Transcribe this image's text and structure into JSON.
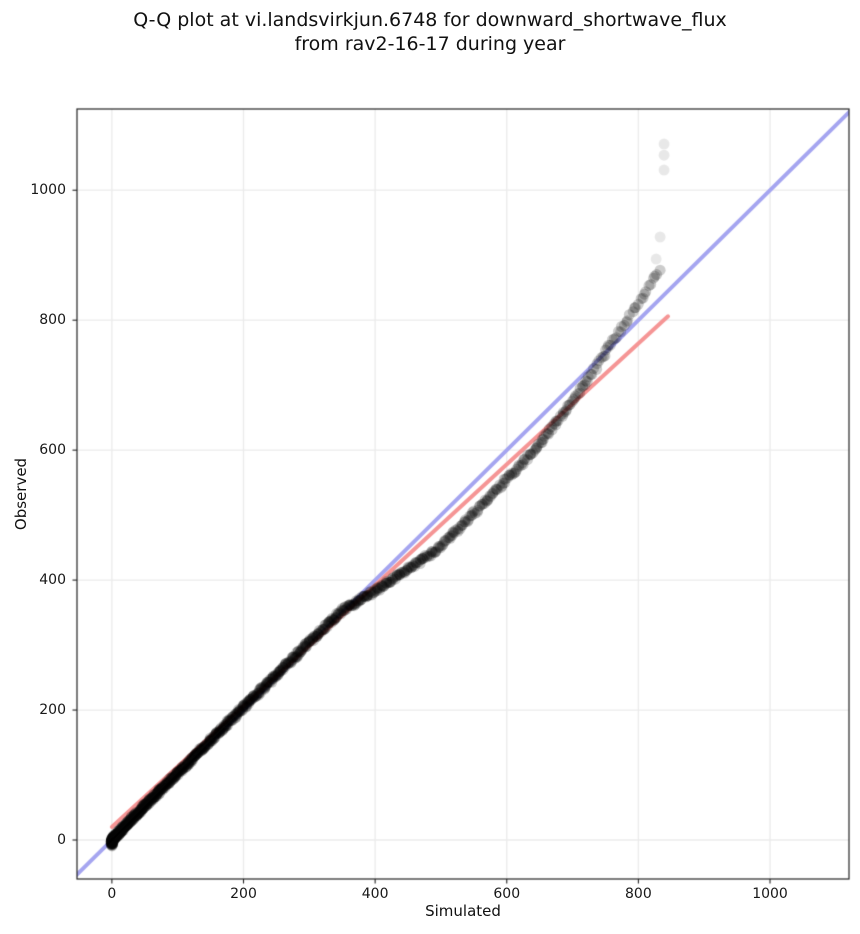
{
  "chart_data": {
    "type": "scatter",
    "title_lines": [
      "Q-Q plot at vi.landsvirkjun.6748 for downward_shortwave_flux",
      "from rav2-16-17 during year"
    ],
    "xlabel": "Simulated",
    "ylabel": "Observed",
    "xlim": [
      -53,
      1120
    ],
    "ylim": [
      -60,
      1125
    ],
    "xticks": [
      0,
      200,
      400,
      600,
      800,
      1000
    ],
    "yticks": [
      0,
      200,
      400,
      600,
      800,
      1000
    ],
    "grid": true,
    "grid_color": "#ebebeb",
    "spine_color": "#222222",
    "background_color": "#ffffff",
    "legend": "none",
    "identity_line": {
      "name": "1:1 reference line",
      "color": "#a5a5f0",
      "width": 4,
      "from": [
        -60,
        -60
      ],
      "to": [
        1125,
        1125
      ]
    },
    "fit_line": {
      "name": "linear fit line",
      "color": "#f59595",
      "width": 4,
      "from": [
        0,
        20
      ],
      "to": [
        845,
        806
      ]
    },
    "scatter": {
      "name": "observed-vs-simulated quantiles",
      "color": "#000000",
      "alpha": 0.2,
      "marker_radius": 5.5,
      "n_points": 1000,
      "jitter_sim": 1.5,
      "jitter_obs": 3,
      "quantile_anchors": [
        [
          0.0,
          0,
          -7
        ],
        [
          0.03,
          0,
          -2
        ],
        [
          0.07,
          1,
          1
        ],
        [
          0.11,
          4,
          4
        ],
        [
          0.16,
          12,
          13
        ],
        [
          0.22,
          27,
          29
        ],
        [
          0.28,
          47,
          49
        ],
        [
          0.34,
          72,
          75
        ],
        [
          0.4,
          102,
          105
        ],
        [
          0.46,
          136,
          139
        ],
        [
          0.52,
          174,
          178
        ],
        [
          0.575,
          215,
          219
        ],
        [
          0.63,
          260,
          264
        ],
        [
          0.68,
          305,
          309
        ],
        [
          0.725,
          350,
          353
        ],
        [
          0.765,
          395,
          380
        ],
        [
          0.8,
          440,
          410
        ],
        [
          0.835,
          490,
          444
        ],
        [
          0.865,
          540,
          492
        ],
        [
          0.89,
          585,
          540
        ],
        [
          0.912,
          625,
          581
        ],
        [
          0.932,
          662,
          625
        ],
        [
          0.95,
          697,
          671
        ],
        [
          0.963,
          725,
          711
        ],
        [
          0.974,
          753,
          756
        ],
        [
          0.983,
          778,
          792
        ],
        [
          0.99,
          800,
          826
        ],
        [
          0.995,
          815,
          852
        ],
        [
          0.998,
          825,
          868
        ],
        [
          1.0,
          833,
          876
        ]
      ],
      "outliers": [
        [
          827,
          894
        ],
        [
          833,
          928
        ],
        [
          839,
          1031
        ],
        [
          839,
          1054
        ],
        [
          839,
          1071
        ]
      ],
      "outlier_alpha": 0.09
    }
  }
}
